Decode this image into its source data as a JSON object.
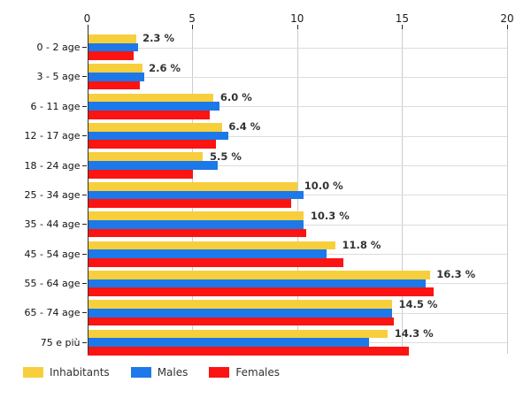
{
  "chart_data": {
    "type": "bar",
    "orientation": "horizontal",
    "title": "",
    "xlabel": "",
    "ylabel": "",
    "categories": [
      "0 - 2 age",
      "3 - 5 age",
      "6 - 11 age",
      "12 - 17 age",
      "18 - 24 age",
      "25 - 34 age",
      "35 - 44 age",
      "45 - 54 age",
      "55 - 64 age",
      "65 - 74 age",
      "75 e più"
    ],
    "series": [
      {
        "name": "Inhabitants",
        "color": "#F7CF3C",
        "values": [
          2.3,
          2.6,
          6.0,
          6.4,
          5.5,
          10.0,
          10.3,
          11.8,
          16.3,
          14.5,
          14.3
        ]
      },
      {
        "name": "Males",
        "color": "#1D78E9",
        "values": [
          2.4,
          2.7,
          6.3,
          6.7,
          6.2,
          10.3,
          10.3,
          11.4,
          16.1,
          14.5,
          13.4
        ]
      },
      {
        "name": "Females",
        "color": "#FB1412",
        "values": [
          2.2,
          2.5,
          5.8,
          6.1,
          5.0,
          9.7,
          10.4,
          12.2,
          16.5,
          14.6,
          15.3
        ]
      }
    ],
    "data_labels": {
      "series": "Inhabitants",
      "values": [
        "2.3 %",
        "2.6 %",
        "6.0 %",
        "6.4 %",
        "5.5 %",
        "10.0 %",
        "10.3 %",
        "11.8 %",
        "16.3 %",
        "14.5 %",
        "14.3 %"
      ]
    },
    "xlim": [
      0,
      20
    ],
    "x_ticks": [
      0,
      5,
      10,
      15,
      20
    ],
    "grid": true,
    "legend_position": "bottom",
    "axis_color": "#333333",
    "grid_color": "#cccccc",
    "row_grid_color": "#dcdcdc"
  },
  "legend": {
    "items": [
      {
        "label": "Inhabitants",
        "color": "#F7CF3C"
      },
      {
        "label": "Males",
        "color": "#1D78E9"
      },
      {
        "label": "Females",
        "color": "#FB1412"
      }
    ]
  }
}
